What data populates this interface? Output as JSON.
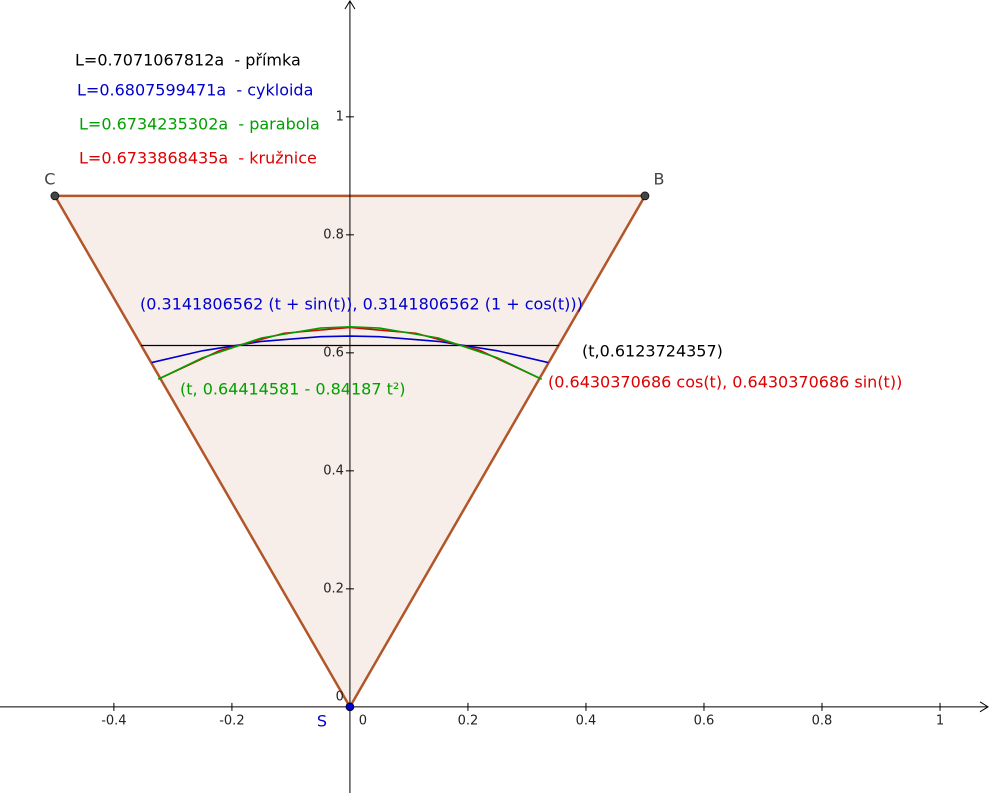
{
  "chart_data": {
    "type": "plot",
    "xlim": [
      -0.593,
      1.083
    ],
    "ylim": [
      -0.146,
      1.198
    ],
    "xticks": [
      -0.4,
      -0.2,
      0,
      0.2,
      0.4,
      0.6,
      0.8,
      1
    ],
    "yticks": [
      0,
      0.2,
      0.4,
      0.6,
      0.8,
      1
    ],
    "annotations": [
      {
        "text": "L=0.7071067812a  - přímka",
        "color": "#000000"
      },
      {
        "text": "L=0.6807599471a  - cykloida",
        "color": "#0000cc"
      },
      {
        "text": "L=0.6734235302a  - parabola",
        "color": "#00a000"
      },
      {
        "text": "L=0.6733868435a  - kružnice",
        "color": "#dd0000"
      }
    ],
    "polygon": {
      "color": "#b2562a",
      "points": [
        {
          "name": "C",
          "x": -0.5,
          "y": 0.866,
          "color": "#444444"
        },
        {
          "name": "B",
          "x": 0.5,
          "y": 0.866,
          "color": "#444444"
        },
        {
          "name": "S",
          "x": 0,
          "y": 0,
          "color": "#0000cc"
        }
      ]
    },
    "series": [
      {
        "name": "(t,0.6123724357)",
        "color": "#000000",
        "x": [
          -0.354,
          0.354
        ],
        "values": [
          0.6124,
          0.6124
        ]
      },
      {
        "name": "(0.3141806562 (t + sin(t)), 0.3141806562 (1 + cos(t)))",
        "color": "#0000cc",
        "x": [
          -0.336,
          -0.25,
          -0.15,
          -0.05,
          0,
          0.05,
          0.15,
          0.25,
          0.336
        ],
        "values": [
          0.5835,
          0.6035,
          0.6194,
          0.6274,
          0.6284,
          0.6274,
          0.6194,
          0.6035,
          0.5835
        ]
      },
      {
        "name": "(0.6430370686 cos(t), 0.6430370686 sin(t))",
        "color": "#dd0000",
        "x": [
          -0.3215,
          -0.2199,
          -0.1117,
          0,
          0.1117,
          0.2199,
          0.3215
        ],
        "values": [
          0.5569,
          0.6042,
          0.6332,
          0.643,
          0.6332,
          0.6042,
          0.5569
        ]
      },
      {
        "name": "(t, 0.64414581 - 0.84187 t²)",
        "color": "#00a000",
        "x": [
          -0.325,
          -0.25,
          -0.15,
          -0.05,
          0,
          0.05,
          0.15,
          0.25,
          0.325
        ],
        "values": [
          0.5552,
          0.5915,
          0.6252,
          0.642,
          0.6441,
          0.642,
          0.6252,
          0.5915,
          0.5552
        ]
      }
    ]
  }
}
